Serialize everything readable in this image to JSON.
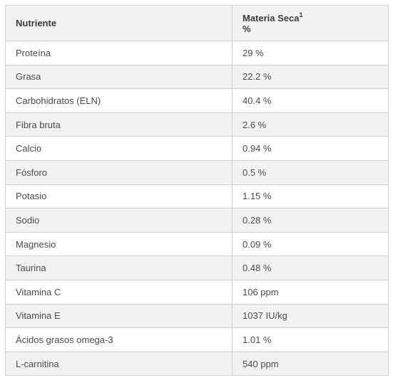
{
  "table": {
    "header": {
      "nutrient": "Nutriente",
      "dry_matter": "Materia Seca",
      "dry_matter_sup": "1",
      "unit": "%"
    },
    "rows": [
      {
        "nutrient": "Proteína",
        "value": "29 %"
      },
      {
        "nutrient": "Grasa",
        "value": "22.2 %"
      },
      {
        "nutrient": "Carbohidratos (ELN)",
        "value": "40.4 %"
      },
      {
        "nutrient": "Fibra bruta",
        "value": "2.6 %"
      },
      {
        "nutrient": "Calcio",
        "value": "0.94 %"
      },
      {
        "nutrient": "Fósforo",
        "value": "0.5 %"
      },
      {
        "nutrient": "Potasio",
        "value": "1.15 %"
      },
      {
        "nutrient": "Sodio",
        "value": "0.28 %"
      },
      {
        "nutrient": "Magnesio",
        "value": "0.09 %"
      },
      {
        "nutrient": "Taurina",
        "value": "0.48 %"
      },
      {
        "nutrient": "Vitamina C",
        "value": "106 ppm"
      },
      {
        "nutrient": "Vitamina E",
        "value": "1037 IU/kg"
      },
      {
        "nutrient": "Ácidos grasos omega-3",
        "value": "1.01 %"
      },
      {
        "nutrient": "L-carnitina",
        "value": "540 ppm"
      }
    ]
  }
}
